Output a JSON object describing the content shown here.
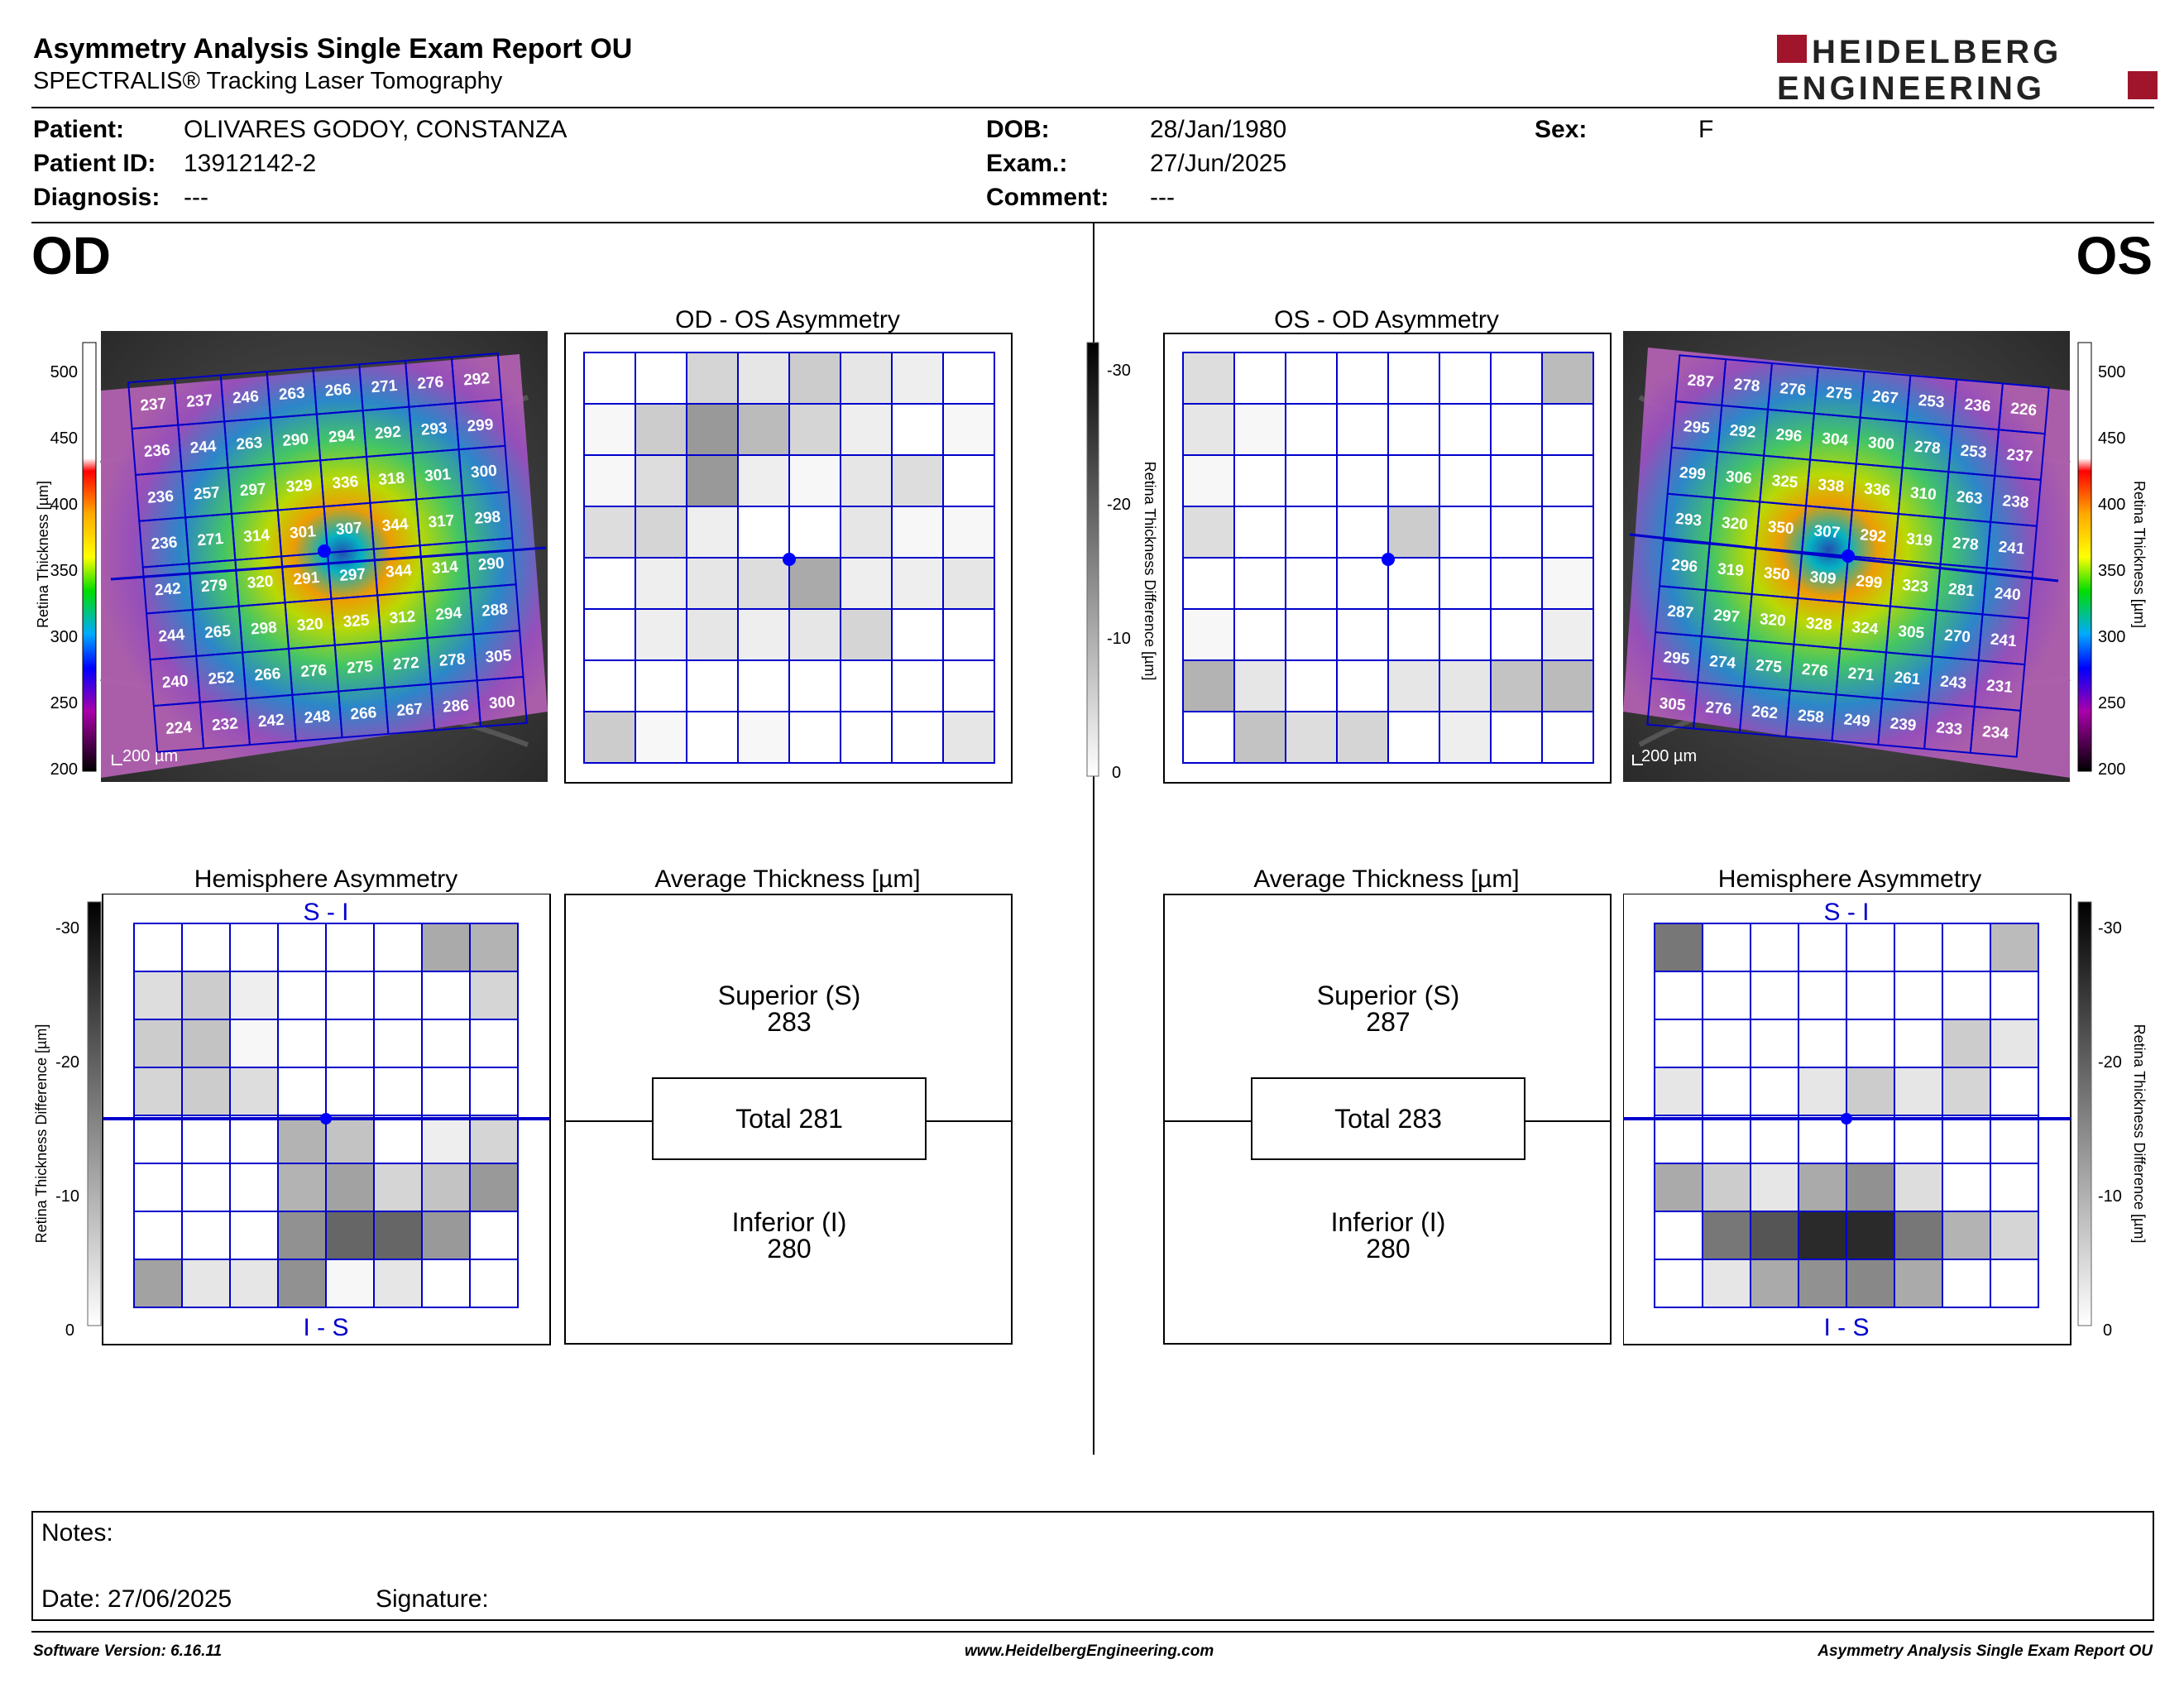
{
  "header": {
    "title": "Asymmetry Analysis Single Exam Report OU",
    "subtitle": "SPECTRALIS® Tracking Laser Tomography",
    "logo_line1": "HEIDELBERG",
    "logo_line2": "ENGINEERING"
  },
  "patient": {
    "patient_label": "Patient:",
    "patient_value": "OLIVARES GODOY, CONSTANZA",
    "id_label": "Patient ID:",
    "id_value": "13912142-2",
    "diagnosis_label": "Diagnosis:",
    "diagnosis_value": "---",
    "dob_label": "DOB:",
    "dob_value": "28/Jan/1980",
    "exam_label": "Exam.:",
    "exam_value": "27/Jun/2025",
    "comment_label": "Comment:",
    "comment_value": "---",
    "sex_label": "Sex:",
    "sex_value": "F"
  },
  "eyes": {
    "od": "OD",
    "os": "OS"
  },
  "colors": {
    "grid_blue": "#0000cc",
    "marker_blue": "#0000ff"
  },
  "thickness_scale": {
    "ticks": [
      "500",
      "450",
      "400",
      "350",
      "300",
      "250",
      "200"
    ],
    "label": "Retina Thickness [µm]"
  },
  "difference_scale": {
    "ticks": [
      "-30",
      "-20",
      "-10",
      "0"
    ],
    "label": "Retina Thickness Difference [µm]"
  },
  "scale_bar": "200 µm",
  "od": {
    "map_title": "OD - OS Asymmetry",
    "hemi_title": "Hemisphere Asymmetry",
    "hemi_top": "S - I",
    "hemi_bottom": "I - S",
    "avg_title": "Average Thickness [µm]",
    "superior_label": "Superior (S)",
    "superior_value": "283",
    "total_label": "Total 281",
    "inferior_label": "Inferior (I)",
    "inferior_value": "280",
    "thickness_grid": [
      [
        237,
        237,
        246,
        263,
        266,
        271,
        276,
        292
      ],
      [
        236,
        244,
        263,
        290,
        294,
        292,
        293,
        299
      ],
      [
        236,
        257,
        297,
        329,
        336,
        318,
        301,
        300
      ],
      [
        236,
        271,
        314,
        301,
        307,
        344,
        317,
        298
      ],
      [
        242,
        279,
        320,
        291,
        297,
        344,
        314,
        290
      ],
      [
        244,
        265,
        298,
        320,
        325,
        312,
        294,
        288
      ],
      [
        240,
        252,
        266,
        276,
        275,
        272,
        278,
        305
      ],
      [
        224,
        232,
        242,
        248,
        266,
        267,
        286,
        300
      ]
    ],
    "asym_grid": [
      [
        0,
        0,
        5,
        3,
        6,
        3,
        2,
        0
      ],
      [
        1,
        6,
        12,
        8,
        5,
        2,
        0,
        1
      ],
      [
        1,
        4,
        12,
        2,
        1,
        3,
        4,
        0
      ],
      [
        4,
        5,
        2,
        0,
        0,
        3,
        1,
        1
      ],
      [
        0,
        2,
        3,
        4,
        10,
        2,
        2,
        3
      ],
      [
        0,
        2,
        3,
        2,
        3,
        5,
        0,
        0
      ],
      [
        0,
        0,
        0,
        0,
        0,
        0,
        0,
        0
      ],
      [
        6,
        1,
        0,
        1,
        0,
        0,
        0,
        3
      ]
    ],
    "hemi_grid": [
      [
        0,
        0,
        0,
        0,
        0,
        0,
        10,
        9
      ],
      [
        4,
        6,
        2,
        0,
        0,
        0,
        0,
        5
      ],
      [
        6,
        7,
        1,
        0,
        0,
        0,
        0,
        0
      ],
      [
        5,
        6,
        4,
        0,
        0,
        0,
        0,
        0
      ],
      [
        0,
        0,
        0,
        9,
        7,
        0,
        2,
        5
      ],
      [
        0,
        0,
        0,
        9,
        11,
        5,
        7,
        12
      ],
      [
        0,
        0,
        0,
        13,
        18,
        18,
        12,
        0
      ],
      [
        11,
        3,
        3,
        13,
        1,
        3,
        0,
        0
      ]
    ]
  },
  "os": {
    "map_title": "OS - OD Asymmetry",
    "hemi_title": "Hemisphere Asymmetry",
    "hemi_top": "S - I",
    "hemi_bottom": "I - S",
    "avg_title": "Average Thickness [µm]",
    "superior_label": "Superior (S)",
    "superior_value": "287",
    "total_label": "Total 283",
    "inferior_label": "Inferior (I)",
    "inferior_value": "280",
    "thickness_grid": [
      [
        287,
        278,
        276,
        275,
        267,
        253,
        236,
        226
      ],
      [
        295,
        292,
        296,
        304,
        300,
        278,
        253,
        237
      ],
      [
        299,
        306,
        325,
        338,
        336,
        310,
        263,
        238
      ],
      [
        293,
        320,
        350,
        307,
        292,
        319,
        278,
        241
      ],
      [
        296,
        319,
        350,
        309,
        299,
        323,
        281,
        240
      ],
      [
        287,
        297,
        320,
        328,
        324,
        305,
        270,
        241
      ],
      [
        295,
        274,
        275,
        276,
        271,
        261,
        243,
        231
      ],
      [
        305,
        276,
        262,
        258,
        249,
        239,
        233,
        234
      ]
    ],
    "asym_grid": [
      [
        4,
        0,
        0,
        0,
        0,
        0,
        0,
        8
      ],
      [
        3,
        1,
        0,
        0,
        0,
        0,
        0,
        0
      ],
      [
        1,
        0,
        0,
        0,
        0,
        0,
        0,
        0
      ],
      [
        4,
        0,
        0,
        0,
        6,
        0,
        0,
        0
      ],
      [
        0,
        0,
        0,
        0,
        0,
        0,
        0,
        1
      ],
      [
        1,
        0,
        0,
        0,
        0,
        0,
        0,
        2
      ],
      [
        9,
        3,
        0,
        0,
        3,
        3,
        7,
        8
      ],
      [
        0,
        7,
        4,
        5,
        0,
        2,
        0,
        0
      ]
    ],
    "hemi_grid": [
      [
        16,
        0,
        0,
        0,
        0,
        0,
        0,
        8
      ],
      [
        0,
        0,
        0,
        0,
        0,
        0,
        0,
        0
      ],
      [
        0,
        0,
        0,
        0,
        0,
        0,
        6,
        3
      ],
      [
        3,
        0,
        0,
        3,
        6,
        3,
        5,
        0
      ],
      [
        0,
        0,
        0,
        0,
        0,
        0,
        0,
        0
      ],
      [
        10,
        6,
        3,
        10,
        13,
        4,
        0,
        0
      ],
      [
        0,
        16,
        20,
        25,
        25,
        16,
        9,
        5
      ],
      [
        0,
        3,
        10,
        13,
        14,
        10,
        0,
        0
      ]
    ]
  },
  "notes": {
    "notes_label": "Notes:",
    "date_label": "Date: 27/06/2025",
    "signature_label": "Signature:"
  },
  "footer": {
    "software": "Software Version: 6.16.11",
    "website": "www.HeidelbergEngineering.com",
    "report": "Asymmetry Analysis Single Exam Report OU"
  }
}
